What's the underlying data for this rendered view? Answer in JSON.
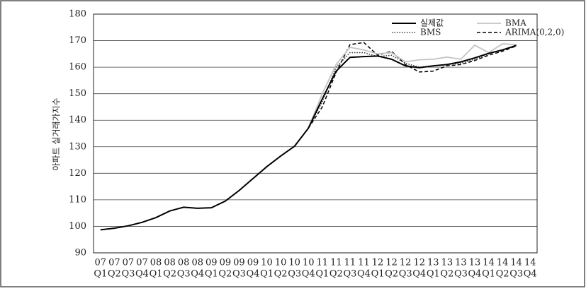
{
  "chart_data": {
    "type": "line",
    "y_label": "아파트 실거래가지수",
    "categories": [
      [
        "07",
        "Q1"
      ],
      [
        "07",
        "Q2"
      ],
      [
        "07",
        "Q3"
      ],
      [
        "07",
        "Q4"
      ],
      [
        "08",
        "Q1"
      ],
      [
        "08",
        "Q2"
      ],
      [
        "08",
        "Q3"
      ],
      [
        "08",
        "Q4"
      ],
      [
        "09",
        "Q1"
      ],
      [
        "09",
        "Q2"
      ],
      [
        "09",
        "Q3"
      ],
      [
        "09",
        "Q4"
      ],
      [
        "10",
        "Q1"
      ],
      [
        "10",
        "Q2"
      ],
      [
        "10",
        "Q3"
      ],
      [
        "10",
        "Q4"
      ],
      [
        "11",
        "Q1"
      ],
      [
        "11",
        "Q2"
      ],
      [
        "11",
        "Q3"
      ],
      [
        "11",
        "Q4"
      ],
      [
        "12",
        "Q1"
      ],
      [
        "12",
        "Q2"
      ],
      [
        "12",
        "Q3"
      ],
      [
        "12",
        "Q4"
      ],
      [
        "13",
        "Q1"
      ],
      [
        "13",
        "Q2"
      ],
      [
        "13",
        "Q3"
      ],
      [
        "13",
        "Q4"
      ],
      [
        "14",
        "Q1"
      ],
      [
        "14",
        "Q2"
      ],
      [
        "14",
        "Q3"
      ],
      [
        "14",
        "Q4"
      ]
    ],
    "series": [
      {
        "name": "실제값",
        "color": "#000000",
        "dash": "solid",
        "width": 2,
        "values": [
          98.7,
          99.3,
          100.2,
          101.5,
          103.3,
          105.8,
          107.2,
          106.8,
          107.0,
          109.5,
          113.5,
          118.0,
          122.5,
          126.5,
          130.2,
          137.0,
          148.0,
          158.5,
          163.7,
          164.0,
          164.2,
          163.0,
          160.5,
          159.8,
          160.5,
          161.0,
          162.0,
          163.5,
          165.2,
          166.5,
          168.2,
          null
        ]
      },
      {
        "name": "BMA",
        "color": "#c4c4c4",
        "dash": "solid",
        "width": 1.8,
        "values": [
          null,
          null,
          null,
          null,
          null,
          null,
          null,
          null,
          null,
          null,
          null,
          null,
          null,
          null,
          null,
          137.0,
          150.0,
          161.0,
          167.5,
          166.5,
          165.0,
          165.5,
          162.0,
          162.8,
          163.0,
          163.8,
          163.0,
          168.3,
          165.5,
          168.8,
          168.5,
          null
        ]
      },
      {
        "name": "BMS",
        "color": "#333333",
        "dash": "dotted",
        "width": 1.5,
        "values": [
          null,
          null,
          null,
          null,
          null,
          null,
          null,
          null,
          null,
          null,
          null,
          null,
          null,
          null,
          null,
          137.0,
          147.0,
          160.0,
          165.5,
          165.5,
          164.0,
          164.5,
          161.5,
          160.0,
          160.5,
          161.0,
          161.5,
          163.0,
          165.0,
          166.5,
          168.0,
          null
        ]
      },
      {
        "name": "ARIMA(0,2,0)",
        "color": "#000000",
        "dash": "dashed",
        "width": 1.5,
        "values": [
          null,
          null,
          null,
          null,
          null,
          null,
          null,
          null,
          null,
          null,
          null,
          null,
          null,
          null,
          null,
          137.0,
          145.0,
          158.0,
          168.5,
          169.3,
          164.5,
          166.0,
          161.0,
          158.2,
          158.5,
          160.5,
          161.0,
          162.5,
          164.5,
          166.0,
          168.0,
          null
        ]
      }
    ],
    "ylim": [
      90,
      180
    ],
    "yticks": [
      90,
      100,
      110,
      120,
      130,
      140,
      150,
      160,
      170,
      180
    ],
    "grid": true,
    "legend": "top-right"
  }
}
